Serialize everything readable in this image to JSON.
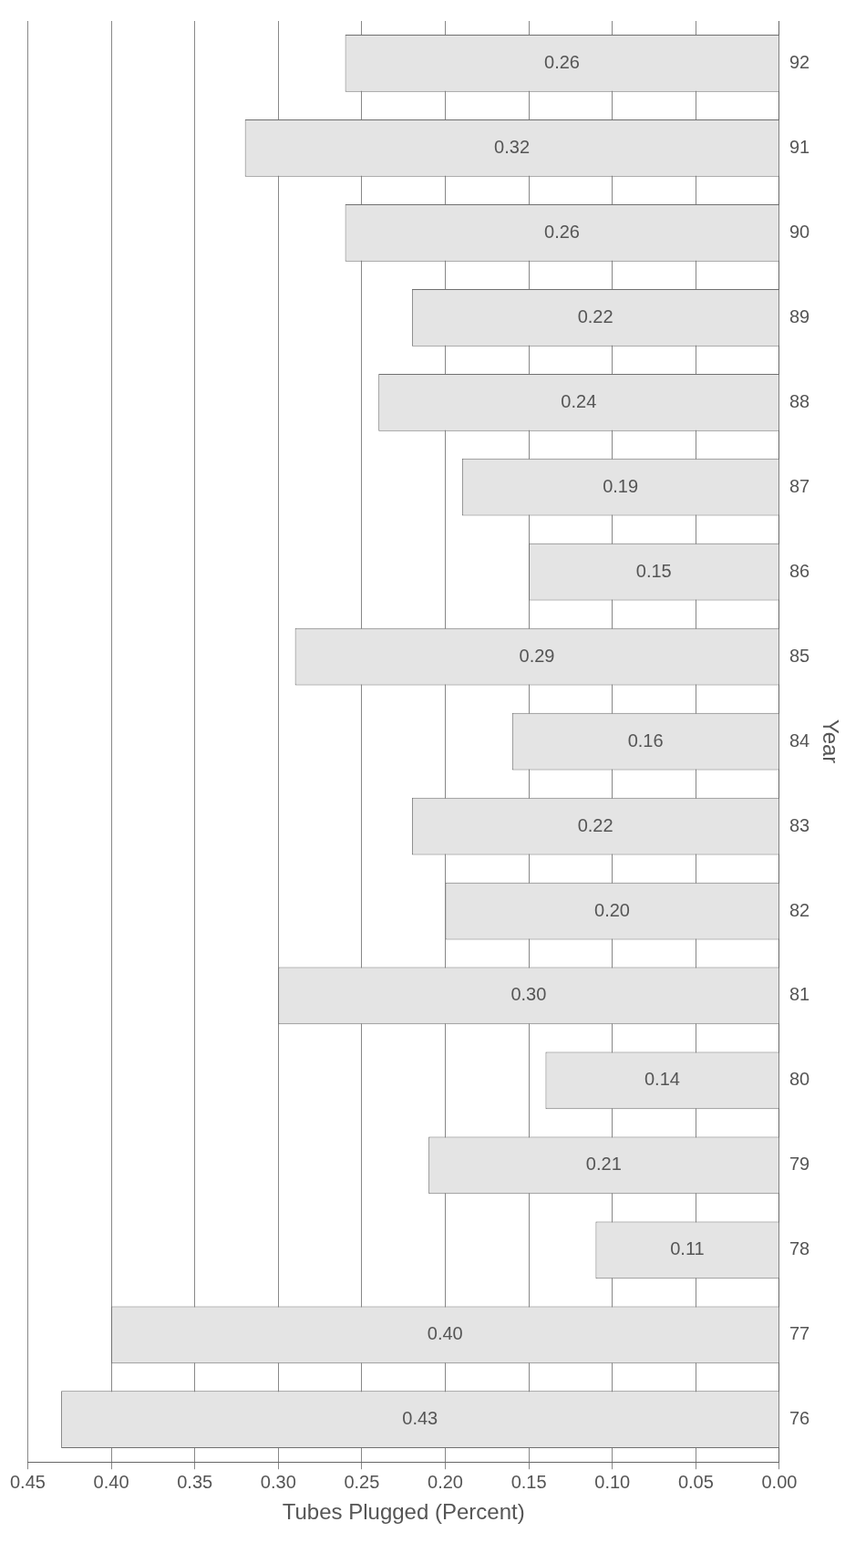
{
  "chart_data": {
    "type": "bar",
    "orientation": "horizontal",
    "xlabel": "Tubes Plugged (Percent)",
    "ylabel": "Year",
    "categories": [
      "92",
      "91",
      "90",
      "89",
      "88",
      "87",
      "86",
      "85",
      "84",
      "83",
      "82",
      "81",
      "80",
      "79",
      "78",
      "77",
      "76"
    ],
    "values": [
      0.26,
      0.32,
      0.26,
      0.22,
      0.24,
      0.19,
      0.15,
      0.29,
      0.16,
      0.22,
      0.2,
      0.3,
      0.14,
      0.21,
      0.11,
      0.4,
      0.43
    ],
    "value_labels": [
      "0.26",
      "0.32",
      "0.26",
      "0.22",
      "0.24",
      "0.19",
      "0.15",
      "0.29",
      "0.16",
      "0.22",
      "0.20",
      "0.30",
      "0.14",
      "0.21",
      "0.11",
      "0.40",
      "0.43"
    ],
    "color": "#e4e4e4",
    "xlim": [
      0.45,
      0
    ],
    "xticks": [
      {
        "value": 0.45,
        "label": "0.45"
      },
      {
        "value": 0.4,
        "label": "0.40"
      },
      {
        "value": 0.35,
        "label": "0.35"
      },
      {
        "value": 0.3,
        "label": "0.30"
      },
      {
        "value": 0.25,
        "label": "0.25"
      },
      {
        "value": 0.2,
        "label": "0.20"
      },
      {
        "value": 0.15,
        "label": "0.15"
      },
      {
        "value": 0.1,
        "label": "0.10"
      },
      {
        "value": 0.05,
        "label": "0.05"
      },
      {
        "value": 0,
        "label": "0.00"
      }
    ],
    "grid": "x",
    "legend": false
  }
}
